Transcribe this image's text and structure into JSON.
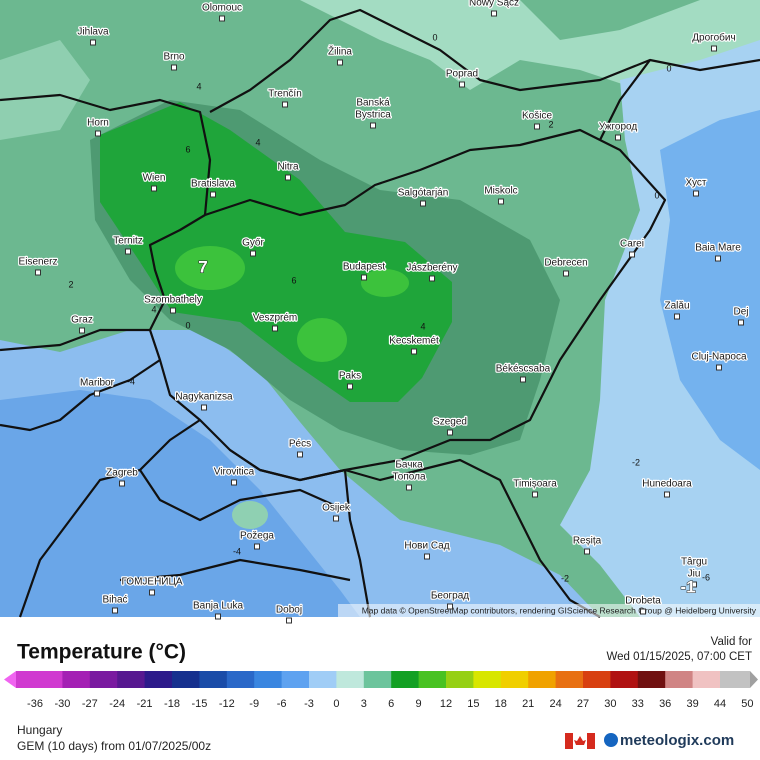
{
  "map": {
    "cities": [
      "Olomouc",
      "Jihlava",
      "Brno",
      "Žilina",
      "Nowy Sącz",
      "Дрогобич",
      "Poprad",
      "Trenčín",
      "Banská",
      "Bystrica",
      "Košice",
      "Ужгород",
      "Horn",
      "Nitra",
      "Wien",
      "Bratislava",
      "Salgótarján",
      "Miskolc",
      "Хуст",
      "Ternitz",
      "Győr",
      "Carei",
      "Baia Mare",
      "Eisenerz",
      "Budapest",
      "Jászberény",
      "Debrecen",
      "Szombathely",
      "Zalău",
      "Graz",
      "Veszprém",
      "Dej",
      "Kecskemét",
      "Cluj-Napoca",
      "Maribor",
      "Paks",
      "Békéscsaba",
      "Nagykanizsa",
      "Szeged",
      "Pécs",
      "Бачка",
      "Топола",
      "Zagreb",
      "Virovitica",
      "Timișoara",
      "Hunedoara",
      "Osijek",
      "Požega",
      "Нови Сад",
      "Reșița",
      "Târgu",
      "Jiu",
      "ГОМЈЕНИЦА",
      "Bihać",
      "Banja Luka",
      "Doboj",
      "Београд",
      "Drobeta"
    ],
    "contour_labels": [
      7,
      6,
      6,
      4,
      4,
      4,
      4,
      2,
      2,
      0,
      0,
      0,
      0,
      -4,
      -4,
      -2,
      -2,
      -6,
      -1
    ],
    "attribution": "Map data © OpenStreetMap contributors, rendering GIScience Research Group @ Heidelberg University"
  },
  "legend": {
    "title": "Temperature (°C)",
    "ticks": [
      -36,
      -30,
      -27,
      -24,
      -21,
      -18,
      -15,
      -12,
      -9,
      -6,
      -3,
      0,
      3,
      6,
      9,
      12,
      15,
      18,
      21,
      24,
      27,
      30,
      33,
      36,
      39,
      44,
      50
    ],
    "colors": [
      "#d03ad0",
      "#a420b4",
      "#7a1aa0",
      "#571890",
      "#2c1a8a",
      "#16308e",
      "#1a4ca8",
      "#2a68c8",
      "#3a86e0",
      "#5ea2f0",
      "#a0cdf6",
      "#bfe8dc",
      "#6cc49c",
      "#13a024",
      "#48c222",
      "#96d014",
      "#d8e600",
      "#f0cf00",
      "#f0a200",
      "#e87012",
      "#d84010",
      "#b01212",
      "#701010",
      "#d08484",
      "#f0c2c2",
      "#c2c2c2"
    ],
    "low_color": "#f064f0",
    "high_color": "#a0a0a0"
  },
  "footer": {
    "region": "Hungary",
    "model": "GEM (10 days) from 01/07/2025/00z",
    "valid_label": "Valid for",
    "valid_time": "Wed 01/15/2025, 07:00 CET",
    "brand": "meteologix.com"
  }
}
